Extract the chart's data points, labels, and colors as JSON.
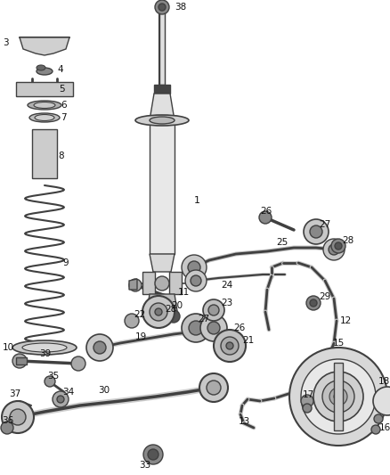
{
  "bg_color": "#ffffff",
  "line_color": "#404040",
  "fig_width": 4.38,
  "fig_height": 5.33,
  "dpi": 100
}
